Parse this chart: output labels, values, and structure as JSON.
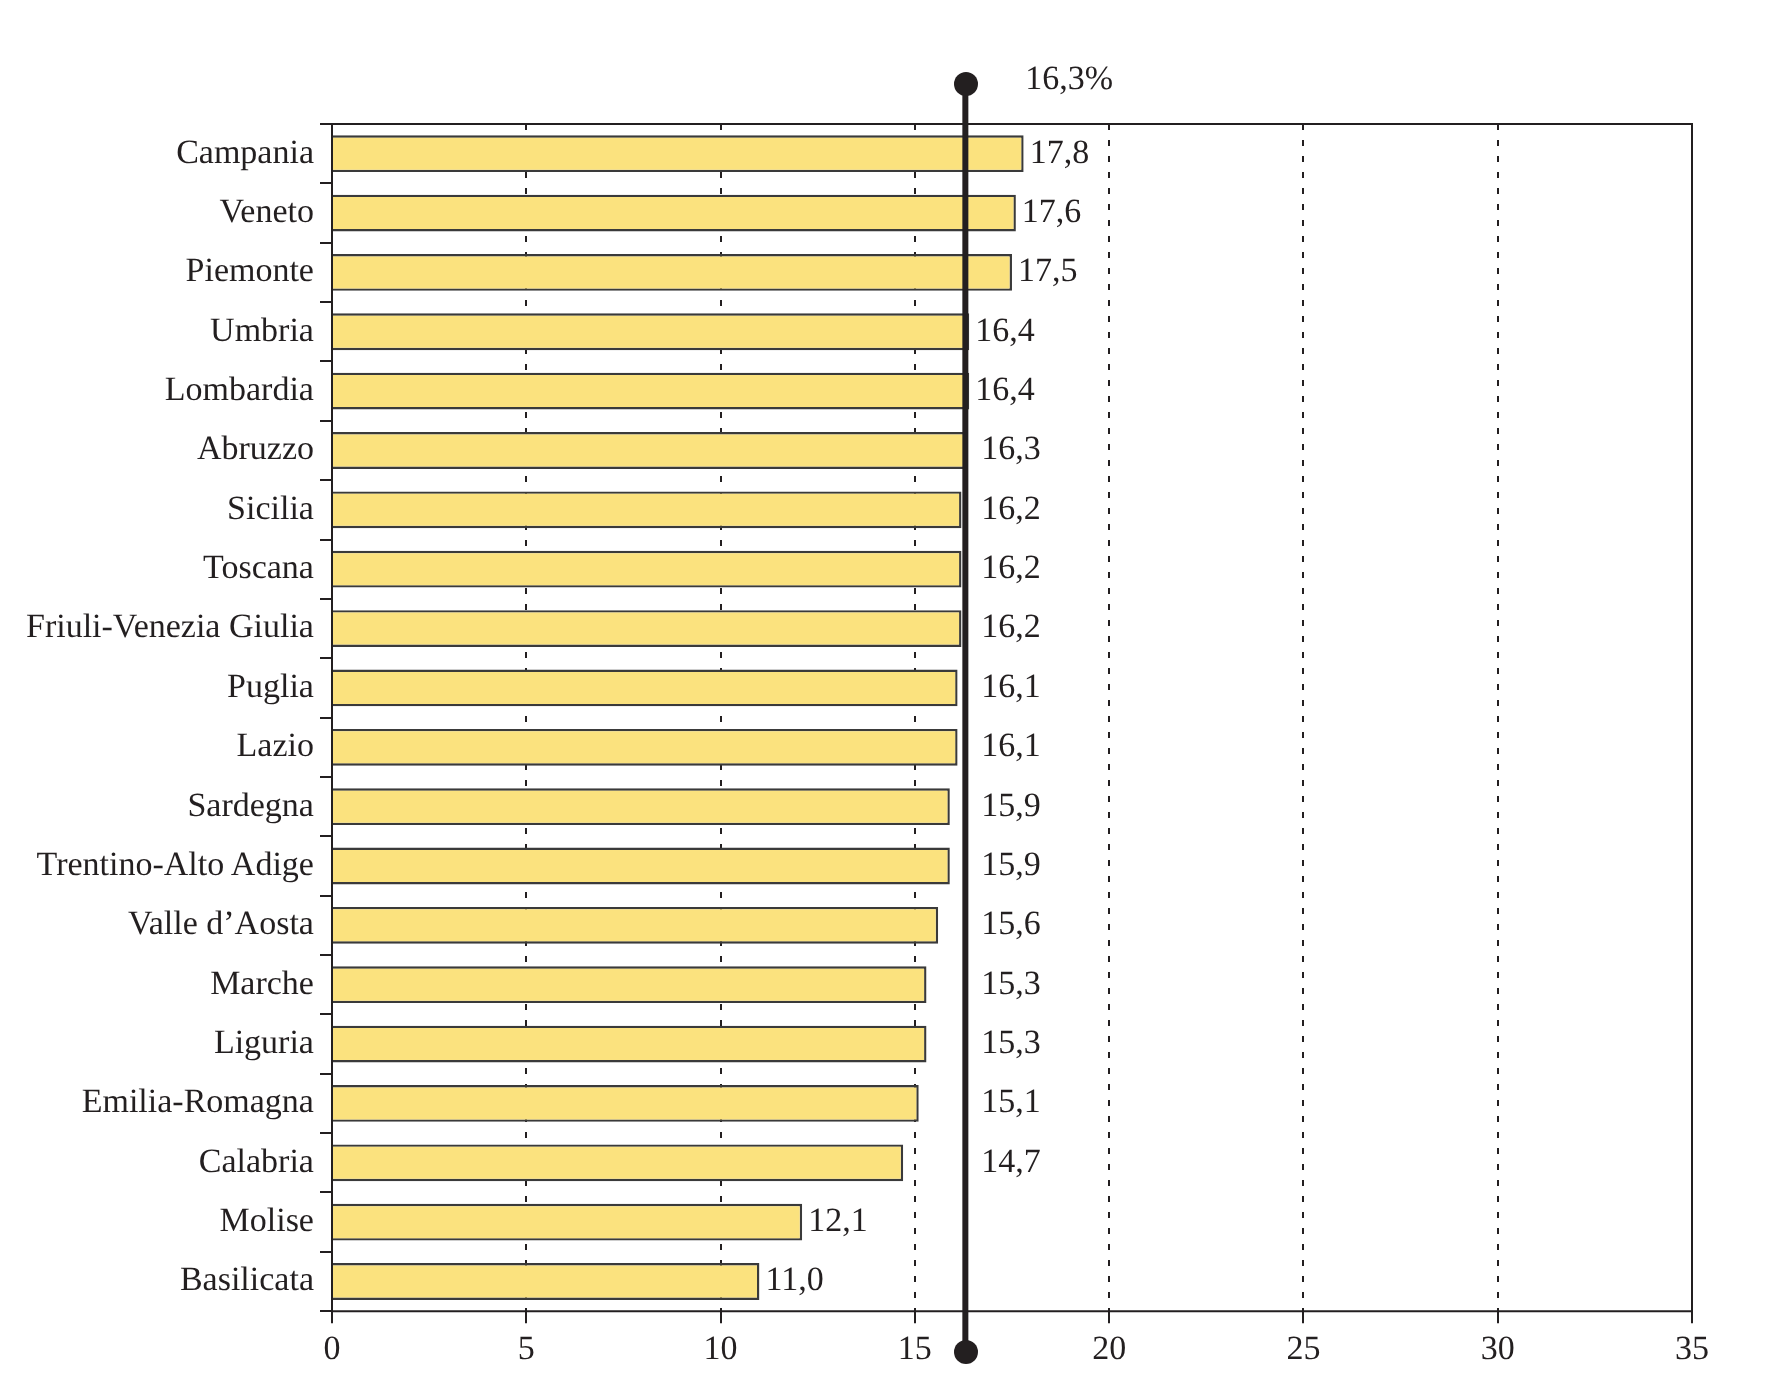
{
  "chart_data": {
    "type": "bar",
    "orientation": "horizontal",
    "categories": [
      "Campania",
      "Veneto",
      "Piemonte",
      "Umbria",
      "Lombardia",
      "Abruzzo",
      "Sicilia",
      "Toscana",
      "Friuli-Venezia Giulia",
      "Puglia",
      "Lazio",
      "Sardegna",
      "Trentino-Alto Adige",
      "Valle d’Aosta",
      "Marche",
      "Liguria",
      "Emilia-Romagna",
      "Calabria",
      "Molise",
      "Basilicata"
    ],
    "values": [
      17.8,
      17.6,
      17.5,
      16.4,
      16.4,
      16.3,
      16.2,
      16.2,
      16.2,
      16.1,
      16.1,
      15.9,
      15.9,
      15.6,
      15.3,
      15.3,
      15.1,
      14.7,
      12.1,
      11.0
    ],
    "value_labels": [
      "17,8",
      "17,6",
      "17,5",
      "16,4",
      "16,4",
      "16,3",
      "16,2",
      "16,2",
      "16,2",
      "16,1",
      "16,1",
      "15,9",
      "15,9",
      "15,6",
      "15,3",
      "15,3",
      "15,1",
      "14,7",
      "12,1",
      "11,0"
    ],
    "color": "#fbe27e",
    "xlim": [
      0,
      35
    ],
    "xticks": [
      0,
      5,
      10,
      15,
      20,
      25,
      30,
      35
    ],
    "grid": "x",
    "ref_lines": [
      {
        "axis": "x",
        "value": 16.3,
        "label": "16,3%",
        "color": "#231f20"
      }
    ]
  }
}
